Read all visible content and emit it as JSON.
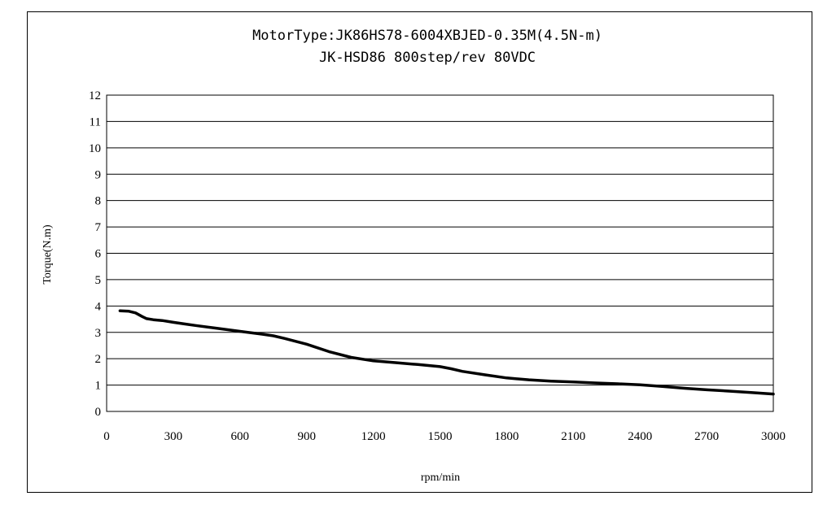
{
  "chart_data": {
    "type": "line",
    "title": "MotorType:JK86HS78-6004XBJED-0.35M(4.5N-m)",
    "subtitle": "JK-HSD86 800step/rev 80VDC",
    "xlabel": "rpm/min",
    "ylabel": "Torque(N.m)",
    "xlim": [
      0,
      3000
    ],
    "ylim": [
      0,
      12
    ],
    "x_ticks": [
      "0",
      "300",
      "600",
      "900",
      "1200",
      "1500",
      "1800",
      "2100",
      "2400",
      "2700",
      "3000"
    ],
    "y_ticks": [
      "0",
      "1",
      "2",
      "3",
      "4",
      "5",
      "6",
      "7",
      "8",
      "9",
      "10",
      "11",
      "12"
    ],
    "grid": "horizontal",
    "legend": "none",
    "series": [
      {
        "color": "#000000",
        "x": [
          60,
          100,
          130,
          160,
          180,
          210,
          250,
          300,
          350,
          400,
          500,
          600,
          700,
          750,
          800,
          900,
          1000,
          1100,
          1200,
          1300,
          1400,
          1500,
          1550,
          1600,
          1700,
          1800,
          1900,
          2000,
          2100,
          2200,
          2300,
          2400,
          2500,
          2600,
          2700,
          2800,
          2900,
          3000
        ],
        "y": [
          3.82,
          3.8,
          3.74,
          3.6,
          3.52,
          3.48,
          3.45,
          3.38,
          3.32,
          3.26,
          3.15,
          3.04,
          2.93,
          2.87,
          2.77,
          2.55,
          2.27,
          2.05,
          1.92,
          1.85,
          1.78,
          1.7,
          1.62,
          1.52,
          1.39,
          1.27,
          1.2,
          1.15,
          1.12,
          1.08,
          1.05,
          1.01,
          0.95,
          0.88,
          0.82,
          0.77,
          0.72,
          0.66
        ]
      }
    ]
  }
}
